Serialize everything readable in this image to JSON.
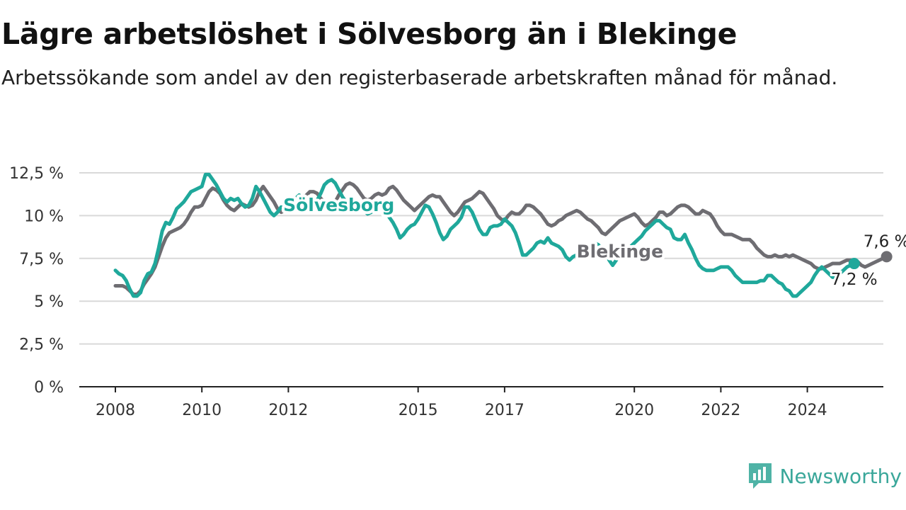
{
  "title": "Lägre arbetslöshet i Sölvesborg än i Blekinge",
  "subtitle": "Arbetssökande som andel av den registerbaserade arbetskraften månad för månad.",
  "brand": {
    "name": "Newsworthy",
    "icon": "newsworthy-chart-bubble-icon",
    "color": "#4fb3a6"
  },
  "chart_data": {
    "type": "line",
    "x_start": "2008-01",
    "x_interval": "month",
    "xlabel": "",
    "ylabel": "",
    "ylim": [
      0,
      12.5
    ],
    "y_ticks": [
      "0 %",
      "2,5 %",
      "5 %",
      "7,5 %",
      "10 %",
      "12,5 %"
    ],
    "x_ticks": [
      "2008",
      "2010",
      "2012",
      "2015",
      "2017",
      "2020",
      "2022",
      "2024"
    ],
    "grid": "horizontal",
    "legend": "inline-labels",
    "series": [
      {
        "name": "Blekinge",
        "color": "#6e6d72",
        "end_label": "7,6 %",
        "values": [
          5.9,
          5.9,
          5.9,
          5.8,
          5.6,
          5.4,
          5.4,
          5.6,
          6.0,
          6.3,
          6.6,
          7.0,
          7.6,
          8.2,
          8.7,
          9.0,
          9.1,
          9.2,
          9.3,
          9.5,
          9.8,
          10.2,
          10.5,
          10.5,
          10.6,
          11.0,
          11.4,
          11.6,
          11.5,
          11.3,
          10.9,
          10.6,
          10.4,
          10.3,
          10.5,
          10.7,
          10.6,
          10.5,
          10.6,
          10.9,
          11.4,
          11.7,
          11.4,
          11.1,
          10.8,
          10.4,
          10.2,
          10.3,
          10.5,
          10.6,
          10.6,
          10.7,
          10.9,
          11.2,
          11.4,
          11.4,
          11.3,
          11.0,
          10.8,
          10.6,
          10.6,
          10.8,
          11.2,
          11.5,
          11.8,
          11.9,
          11.8,
          11.6,
          11.3,
          11.0,
          10.9,
          11.0,
          11.2,
          11.3,
          11.2,
          11.3,
          11.6,
          11.7,
          11.5,
          11.2,
          10.9,
          10.7,
          10.5,
          10.3,
          10.5,
          10.7,
          10.9,
          11.1,
          11.2,
          11.1,
          11.1,
          10.8,
          10.5,
          10.2,
          10.0,
          10.2,
          10.5,
          10.8,
          10.9,
          11.0,
          11.2,
          11.4,
          11.3,
          11.0,
          10.7,
          10.4,
          10.0,
          9.8,
          9.7,
          10.0,
          10.2,
          10.1,
          10.1,
          10.3,
          10.6,
          10.6,
          10.5,
          10.3,
          10.1,
          9.8,
          9.5,
          9.4,
          9.5,
          9.7,
          9.8,
          10.0,
          10.1,
          10.2,
          10.3,
          10.2,
          10.0,
          9.8,
          9.7,
          9.5,
          9.3,
          9.0,
          8.9,
          9.1,
          9.3,
          9.5,
          9.7,
          9.8,
          9.9,
          10.0,
          10.1,
          9.9,
          9.6,
          9.4,
          9.5,
          9.7,
          9.9,
          10.2,
          10.2,
          10.0,
          10.1,
          10.3,
          10.5,
          10.6,
          10.6,
          10.5,
          10.3,
          10.1,
          10.1,
          10.3,
          10.2,
          10.1,
          9.8,
          9.4,
          9.1,
          8.9,
          8.9,
          8.9,
          8.8,
          8.7,
          8.6,
          8.6,
          8.6,
          8.4,
          8.1,
          7.9,
          7.7,
          7.6,
          7.6,
          7.7,
          7.6,
          7.6,
          7.7,
          7.6,
          7.7,
          7.6,
          7.5,
          7.4,
          7.3,
          7.2,
          7.0,
          6.9,
          6.9,
          7.0,
          7.1,
          7.2,
          7.2,
          7.2,
          7.3,
          7.4,
          7.4,
          7.4,
          7.3,
          7.1,
          7.0,
          7.1,
          7.2,
          7.3,
          7.4,
          7.5,
          7.6
        ]
      },
      {
        "name": "Sölvesborg",
        "color": "#1fa89b",
        "end_label": "7,2 %",
        "values": [
          6.8,
          6.6,
          6.5,
          6.2,
          5.7,
          5.3,
          5.3,
          5.5,
          6.2,
          6.6,
          6.7,
          7.2,
          8.1,
          9.1,
          9.6,
          9.5,
          9.9,
          10.4,
          10.6,
          10.8,
          11.1,
          11.4,
          11.5,
          11.6,
          11.7,
          12.4,
          12.4,
          12.1,
          11.8,
          11.4,
          11.0,
          10.8,
          11.0,
          10.9,
          11.0,
          10.7,
          10.5,
          10.6,
          11.0,
          11.7,
          11.4,
          11.0,
          10.6,
          10.2,
          10.0,
          10.2,
          10.5,
          10.4,
          10.5,
          10.8,
          11.0,
          11.2,
          10.9,
          10.6,
          10.4,
          10.5,
          10.9,
          11.3,
          11.8,
          12.0,
          12.1,
          11.9,
          11.5,
          11.1,
          10.8,
          10.7,
          10.7,
          10.8,
          10.6,
          10.3,
          10.1,
          10.2,
          10.4,
          10.6,
          10.4,
          10.2,
          9.9,
          9.6,
          9.2,
          8.7,
          8.9,
          9.2,
          9.4,
          9.5,
          9.8,
          10.2,
          10.6,
          10.5,
          10.1,
          9.6,
          9.0,
          8.6,
          8.8,
          9.2,
          9.4,
          9.6,
          9.9,
          10.5,
          10.5,
          10.2,
          9.7,
          9.2,
          8.9,
          8.9,
          9.3,
          9.4,
          9.4,
          9.5,
          9.8,
          9.6,
          9.4,
          9.0,
          8.4,
          7.7,
          7.7,
          7.9,
          8.1,
          8.4,
          8.5,
          8.4,
          8.7,
          8.4,
          8.3,
          8.2,
          8.0,
          7.6,
          7.4,
          7.6,
          7.7,
          7.7,
          7.6,
          7.9,
          8.2,
          8.4,
          8.3,
          8.0,
          7.8,
          7.4,
          7.1,
          7.4,
          7.8,
          7.9,
          8.0,
          8.2,
          8.4,
          8.6,
          8.8,
          9.1,
          9.3,
          9.5,
          9.7,
          9.7,
          9.5,
          9.3,
          9.2,
          8.7,
          8.6,
          8.6,
          8.9,
          8.4,
          8.0,
          7.5,
          7.1,
          6.9,
          6.8,
          6.8,
          6.8,
          6.9,
          7.0,
          7.0,
          7.0,
          6.8,
          6.5,
          6.3,
          6.1,
          6.1,
          6.1,
          6.1,
          6.1,
          6.2,
          6.2,
          6.5,
          6.5,
          6.3,
          6.1,
          6.0,
          5.7,
          5.6,
          5.3,
          5.3,
          5.5,
          5.7,
          5.9,
          6.1,
          6.5,
          6.8,
          7.0,
          6.8,
          6.6,
          6.4,
          6.4,
          6.6,
          6.8,
          7.0,
          7.1,
          7.2
        ]
      }
    ]
  }
}
